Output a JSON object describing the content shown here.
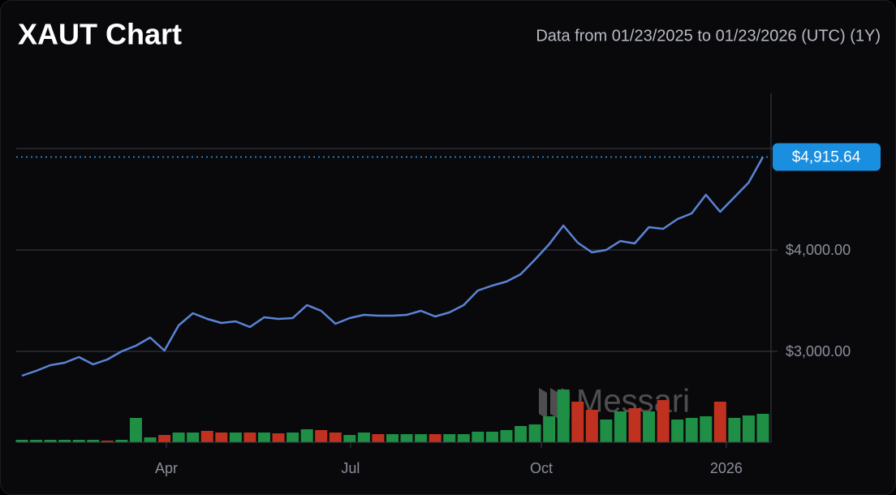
{
  "chart_data": {
    "type": "line",
    "title": "XAUT Chart",
    "subtitle": "Data from 01/23/2025 to 01/23/2026 (UTC) (1Y)",
    "color": "#5b84d6",
    "values": [
      2760,
      2808,
      2864,
      2888,
      2944,
      2872,
      2920,
      3000,
      3056,
      3136,
      3008,
      3256,
      3376,
      3320,
      3280,
      3296,
      3240,
      3336,
      3320,
      3328,
      3456,
      3400,
      3272,
      3328,
      3360,
      3352,
      3352,
      3360,
      3400,
      3344,
      3384,
      3456,
      3600,
      3648,
      3688,
      3760,
      3904,
      4056,
      4240,
      4072,
      3976,
      4000,
      4088,
      4064,
      4224,
      4208,
      4304,
      4360,
      4544,
      4376,
      4520,
      4664,
      4915.64
    ],
    "volume": {
      "values": [
        3,
        3,
        3,
        3,
        3,
        3,
        2,
        3,
        30,
        6,
        9,
        12,
        12,
        14,
        12,
        12,
        12,
        12,
        11,
        12,
        16,
        15,
        12,
        9,
        12,
        10,
        10,
        10,
        10,
        10,
        10,
        10,
        13,
        13,
        15,
        20,
        22,
        32,
        65,
        50,
        40,
        28,
        38,
        42,
        38,
        52,
        28,
        30,
        32,
        50,
        30,
        33,
        35
      ],
      "colors": [
        "#1e8f45",
        "#1e8f45",
        "#1e8f45",
        "#1e8f45",
        "#1e8f45",
        "#1e8f45",
        "#c0321f",
        "#1e8f45",
        "#1e8f45",
        "#1e8f45",
        "#c0321f",
        "#1e8f45",
        "#1e8f45",
        "#c0321f",
        "#c0321f",
        "#1e8f45",
        "#c0321f",
        "#1e8f45",
        "#c0321f",
        "#1e8f45",
        "#1e8f45",
        "#c0321f",
        "#c0321f",
        "#1e8f45",
        "#1e8f45",
        "#c0321f",
        "#1e8f45",
        "#1e8f45",
        "#1e8f45",
        "#c0321f",
        "#1e8f45",
        "#1e8f45",
        "#1e8f45",
        "#1e8f45",
        "#1e8f45",
        "#1e8f45",
        "#1e8f45",
        "#1e8f45",
        "#1e8f45",
        "#c0321f",
        "#c0321f",
        "#1e8f45",
        "#1e8f45",
        "#c0321f",
        "#1e8f45",
        "#c0321f",
        "#1e8f45",
        "#1e8f45",
        "#1e8f45",
        "#c0321f",
        "#1e8f45",
        "#1e8f45",
        "#1e8f45"
      ]
    },
    "xlim": [
      0,
      52
    ],
    "xticks": [
      {
        "value": 10.14,
        "label": "Apr"
      },
      {
        "value": 23.06,
        "label": "Jul"
      },
      {
        "value": 36.45,
        "label": "Oct"
      },
      {
        "value": 49.43,
        "label": "2026"
      }
    ],
    "ylim": [
      2104,
      5544
    ],
    "yticks": [
      {
        "value": 3000,
        "label": "$3,000.00"
      },
      {
        "value": 4000,
        "label": "$4,000.00"
      },
      {
        "value": 5000,
        "label": null
      }
    ],
    "grid": true,
    "last_price": {
      "value": 4915.64,
      "label": "$4,915.64"
    },
    "watermark": "Messari"
  }
}
